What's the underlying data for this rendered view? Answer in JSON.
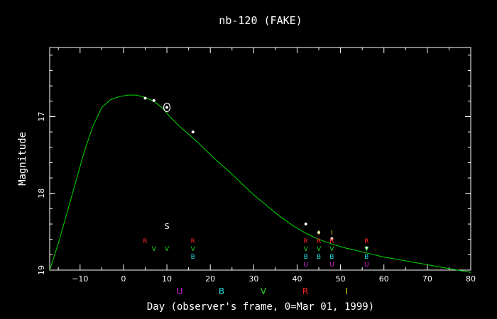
{
  "chart_data": {
    "type": "line",
    "title": "nb-120 (FAKE)",
    "xlabel": "Day (observer's frame, 0=Mar 01, 1999)",
    "ylabel": "Magnitude",
    "xlim": [
      -17,
      80
    ],
    "ylim": [
      19,
      16.1
    ],
    "xticks": [
      -10,
      0,
      10,
      20,
      30,
      40,
      50,
      60,
      70,
      80
    ],
    "yticks": [
      17,
      18,
      19
    ],
    "curve": {
      "color": "#00dd00",
      "x": [
        -17,
        -15,
        -13,
        -11,
        -9,
        -7,
        -5,
        -3,
        -1,
        1,
        3,
        5,
        7,
        9,
        11,
        13,
        15,
        17,
        19,
        21,
        23,
        25,
        27,
        30,
        33,
        36,
        39,
        42,
        45,
        48,
        51,
        54,
        57,
        60,
        63,
        66,
        69,
        72,
        75,
        78,
        80
      ],
      "y": [
        19.0,
        18.65,
        18.25,
        17.85,
        17.45,
        17.12,
        16.88,
        16.78,
        16.74,
        16.72,
        16.72,
        16.75,
        16.8,
        16.89,
        17.02,
        17.13,
        17.23,
        17.33,
        17.44,
        17.55,
        17.65,
        17.75,
        17.86,
        18.02,
        18.16,
        18.3,
        18.42,
        18.52,
        18.6,
        18.66,
        18.71,
        18.75,
        18.79,
        18.83,
        18.86,
        18.89,
        18.92,
        18.95,
        18.98,
        19.01,
        19.03
      ]
    },
    "points": [
      {
        "x": 5,
        "y": 16.76
      },
      {
        "x": 7,
        "y": 16.79
      },
      {
        "x": 10,
        "y": 16.88,
        "circled": true
      },
      {
        "x": 16,
        "y": 17.2
      },
      {
        "x": 42,
        "y": 18.4
      },
      {
        "x": 45,
        "y": 18.51
      },
      {
        "x": 48,
        "y": 18.59
      },
      {
        "x": 56,
        "y": 18.71
      }
    ],
    "spectrum_marker": {
      "x": 10,
      "label": "S"
    },
    "filter_colors": {
      "U": "#dd22dd",
      "B": "#22dddd",
      "V": "#22dd22",
      "R": "#ff2222",
      "I": "#dddd22"
    },
    "observations": [
      {
        "x": 5,
        "filters": [
          "R"
        ]
      },
      {
        "x": 7,
        "filters": [
          "V"
        ]
      },
      {
        "x": 10,
        "filters": [
          "V"
        ]
      },
      {
        "x": 16,
        "filters": [
          "R",
          "V",
          "B"
        ]
      },
      {
        "x": 42,
        "filters": [
          "R",
          "V",
          "B",
          "U"
        ]
      },
      {
        "x": 45,
        "filters": [
          "I",
          "R",
          "V",
          "B"
        ]
      },
      {
        "x": 48,
        "filters": [
          "I",
          "R",
          "V",
          "B",
          "U"
        ]
      },
      {
        "x": 56,
        "filters": [
          "R",
          "V",
          "B",
          "U"
        ]
      }
    ],
    "filter_legend": [
      "U",
      "B",
      "V",
      "R",
      "I"
    ]
  }
}
